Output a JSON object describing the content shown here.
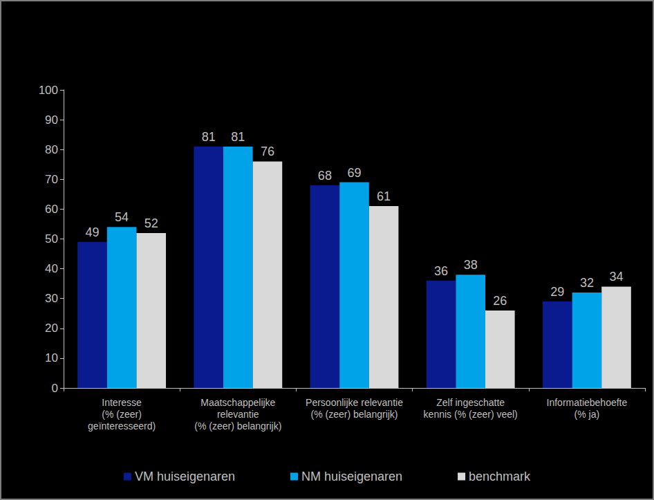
{
  "chart_data": {
    "type": "bar",
    "categories": [
      "Interesse\n(% (zeer)\ngeïnteresseerd)",
      "Maatschappelijke\nrelevantie\n(% (zeer) belangrijk)",
      "Persoonlijke relevantie\n(% (zeer) belangrijk)",
      "Zelf ingeschatte\nkennis (% (zeer) veel)",
      "Informatiebehoefte\n(% ja)"
    ],
    "series": [
      {
        "name": "VM huiseigenaren",
        "color": "#0a1a8f",
        "values": [
          49,
          81,
          68,
          36,
          29
        ]
      },
      {
        "name": "NM huiseigenaren",
        "color": "#00a2e8",
        "values": [
          54,
          81,
          69,
          38,
          32
        ]
      },
      {
        "name": "benchmark",
        "color": "#d9d9d9",
        "values": [
          52,
          76,
          61,
          26,
          34
        ]
      }
    ],
    "ylim": [
      0,
      100
    ],
    "yticks": [
      0,
      10,
      20,
      30,
      40,
      50,
      60,
      70,
      80,
      90,
      100
    ],
    "grid": false,
    "legend": "bottom",
    "data_labels": true
  }
}
